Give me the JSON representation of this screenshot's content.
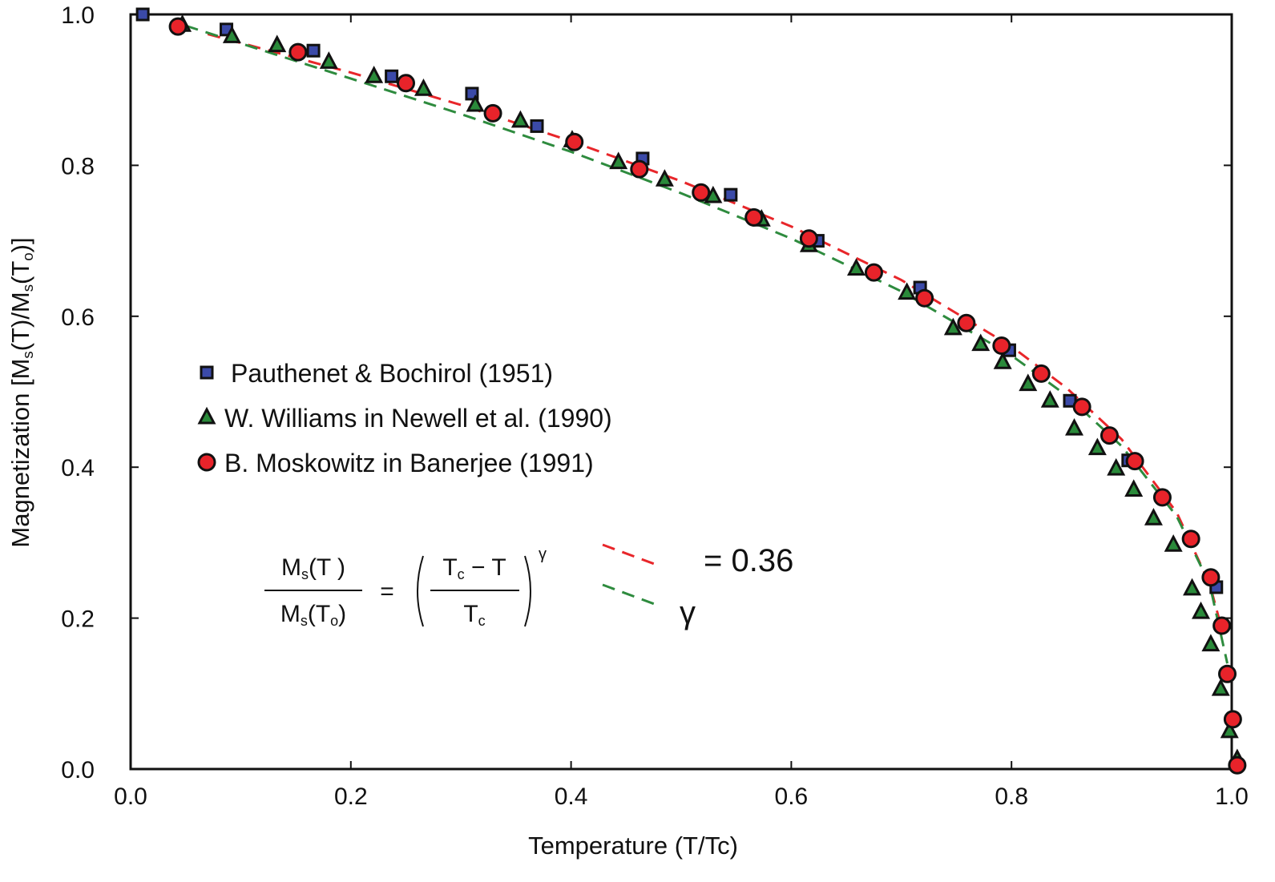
{
  "chart_data": {
    "type": "scatter",
    "x_label": "Temperature (T/Tc)",
    "y_label": [
      "Magnetization [M",
      "s",
      "(T)/M",
      "s",
      "(T",
      "o",
      ")]"
    ],
    "xlim": [
      0,
      1.0
    ],
    "ylim": [
      0,
      1.0
    ],
    "xticks": [
      {
        "value": 0,
        "label": "0.0"
      },
      0.2,
      0.4,
      0.6,
      0.8,
      {
        "value": 1.0,
        "label": "1.0"
      }
    ],
    "yticks": [
      {
        "value": 0,
        "label": "0.0"
      },
      0.2,
      0.4,
      0.6,
      0.8,
      {
        "value": 1.0,
        "label": "1.0"
      }
    ],
    "series": [
      {
        "name": "Pauthenet & Bochirol (1951)",
        "color": "#3b4aa8",
        "marker": "square",
        "x": [
          0.011,
          0.087,
          0.166,
          0.237,
          0.31,
          0.369,
          0.465,
          0.545,
          0.624,
          0.717,
          0.798,
          0.853,
          0.906,
          0.986
        ],
        "values": [
          1.0,
          0.98,
          0.952,
          0.918,
          0.895,
          0.852,
          0.809,
          0.761,
          0.7,
          0.638,
          0.555,
          0.488,
          0.409,
          0.241
        ]
      },
      {
        "name": "W. Williams in Newell et al. (1990)",
        "color": "#2a8a3a",
        "marker": "triangle",
        "x": [
          0.047,
          0.092,
          0.133,
          0.18,
          0.221,
          0.266,
          0.313,
          0.354,
          0.401,
          0.443,
          0.485,
          0.529,
          0.573,
          0.616,
          0.659,
          0.705,
          0.747,
          0.772,
          0.792,
          0.815,
          0.835,
          0.857,
          0.878,
          0.895,
          0.911,
          0.929,
          0.947,
          0.964,
          0.972,
          0.981,
          0.99,
          0.998,
          1.005
        ],
        "values": [
          0.986,
          0.971,
          0.959,
          0.937,
          0.918,
          0.901,
          0.88,
          0.859,
          0.833,
          0.804,
          0.781,
          0.759,
          0.728,
          0.694,
          0.663,
          0.631,
          0.584,
          0.563,
          0.539,
          0.51,
          0.488,
          0.451,
          0.425,
          0.398,
          0.37,
          0.332,
          0.297,
          0.239,
          0.208,
          0.165,
          0.106,
          0.05,
          0.013
        ]
      },
      {
        "name": "B. Moskowitz in Banerjee (1991)",
        "color": "#e8232a",
        "marker": "circle",
        "x": [
          0.043,
          0.152,
          0.25,
          0.329,
          0.403,
          0.462,
          0.518,
          0.566,
          0.616,
          0.675,
          0.721,
          0.759,
          0.791,
          0.827,
          0.864,
          0.889,
          0.912,
          0.937,
          0.963,
          0.981,
          0.991,
          0.996,
          1.001,
          1.005
        ],
        "values": [
          0.984,
          0.95,
          0.909,
          0.869,
          0.831,
          0.795,
          0.764,
          0.731,
          0.703,
          0.658,
          0.624,
          0.591,
          0.561,
          0.524,
          0.48,
          0.442,
          0.408,
          0.36,
          0.305,
          0.254,
          0.19,
          0.126,
          0.066,
          0.005
        ]
      },
      {
        "color": "#e8262a",
        "marker": "dashed",
        "x": [
          0.07,
          0.2,
          0.3,
          0.4,
          0.5,
          0.6,
          0.7,
          0.8,
          0.85,
          0.9,
          0.95,
          0.98,
          0.99
        ],
        "values": [
          0.974,
          0.923,
          0.88,
          0.832,
          0.779,
          0.719,
          0.648,
          0.56,
          0.505,
          0.437,
          0.34,
          0.245,
          0.191
        ]
      },
      {
        "color": "#2e8b3e",
        "marker": "dashed",
        "x": [
          0.05,
          0.2,
          0.3,
          0.4,
          0.5,
          0.6,
          0.7,
          0.8,
          0.85,
          0.9,
          0.95,
          0.98,
          0.996
        ],
        "values": [
          0.985,
          0.915,
          0.868,
          0.818,
          0.763,
          0.703,
          0.633,
          0.548,
          0.495,
          0.428,
          0.335,
          0.245,
          0.14
        ]
      }
    ],
    "equation": {
      "lhs_numerator": [
        "M",
        "s",
        "(T )"
      ],
      "lhs_denominator": [
        "M",
        "s",
        "(T",
        "o",
        ")"
      ],
      "equals": "=",
      "rhs_numerator": [
        "T",
        "c",
        " − T"
      ],
      "rhs_denominator": [
        "T",
        "c"
      ],
      "exponent": "γ",
      "gamma_value": "= 0.36",
      "gamma_symbol": "γ"
    }
  }
}
